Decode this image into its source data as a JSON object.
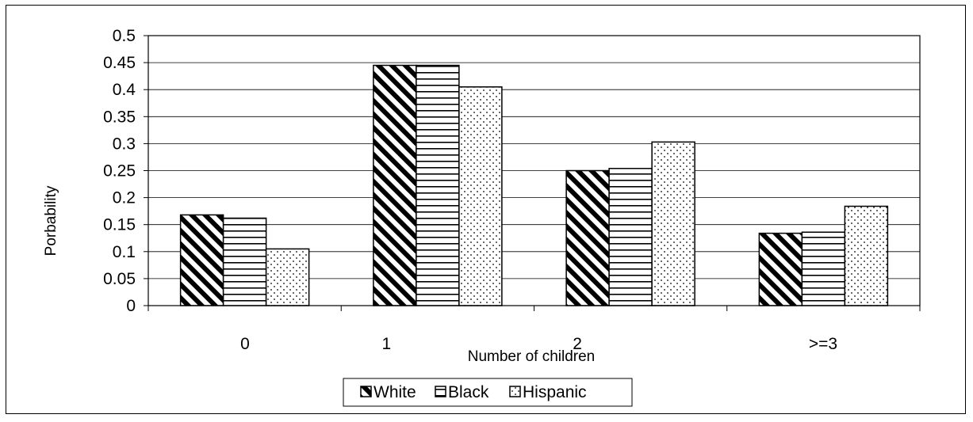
{
  "chart_data": {
    "type": "bar",
    "title": "",
    "xlabel": "Number of children",
    "ylabel": "Porbability",
    "categories": [
      "0",
      "1",
      "2",
      ">=3"
    ],
    "series": [
      {
        "name": "White",
        "values": [
          0.168,
          0.445,
          0.25,
          0.134
        ]
      },
      {
        "name": "Black",
        "values": [
          0.162,
          0.445,
          0.254,
          0.136
        ]
      },
      {
        "name": "Hispanic",
        "values": [
          0.105,
          0.405,
          0.303,
          0.184
        ]
      }
    ],
    "ylim": [
      0,
      0.5
    ],
    "yticks": [
      "0",
      "0.05",
      "0.1",
      "0.15",
      "0.2",
      "0.25",
      "0.3",
      "0.35",
      "0.4",
      "0.45",
      "0.5"
    ],
    "grid": "horizontal",
    "legend_position": "bottom",
    "patterns": [
      "diagonal-hatch",
      "horizontal-lines",
      "dotted"
    ]
  }
}
